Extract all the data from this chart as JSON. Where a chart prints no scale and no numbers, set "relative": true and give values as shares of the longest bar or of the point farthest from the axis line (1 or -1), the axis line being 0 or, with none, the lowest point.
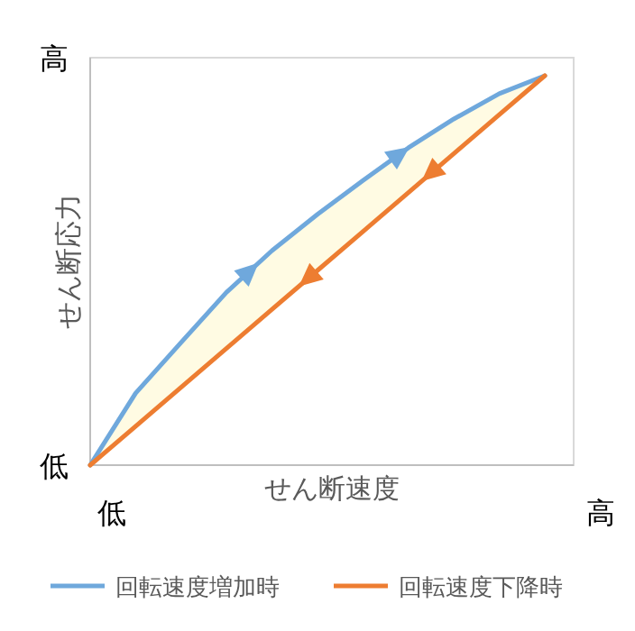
{
  "chart_data": {
    "type": "line",
    "relative": true,
    "xlabel": "せん断速度",
    "ylabel": "せん断応力",
    "categories": [
      null,
      null,
      null,
      null,
      null,
      null,
      null,
      null,
      null,
      null,
      null
    ],
    "series": [
      {
        "name": "回転速度増加時",
        "color": "#6fa8dc",
        "values": [
          0,
          0.185,
          0.315,
          0.444,
          0.551,
          0.644,
          0.731,
          0.815,
          0.889,
          0.954,
          1
        ],
        "lower": [
          0,
          0.1,
          0.2,
          0.3,
          0.4,
          0.5,
          0.6,
          0.7,
          0.8,
          0.9,
          1
        ],
        "upper": [
          0,
          0.185,
          0.315,
          0.444,
          0.551,
          0.644,
          0.731,
          0.815,
          0.889,
          0.954,
          1
        ]
      },
      {
        "name": "回転速度下降時",
        "color": "#ed7d31",
        "values": [
          0,
          0.1,
          0.2,
          0.3,
          0.4,
          0.5,
          0.6,
          0.7,
          0.8,
          0.9,
          1
        ]
      }
    ],
    "annotations": [
      "高",
      "低",
      "低",
      "高"
    ],
    "legend": "bottom",
    "marker": "none",
    "line_style": "solid"
  }
}
